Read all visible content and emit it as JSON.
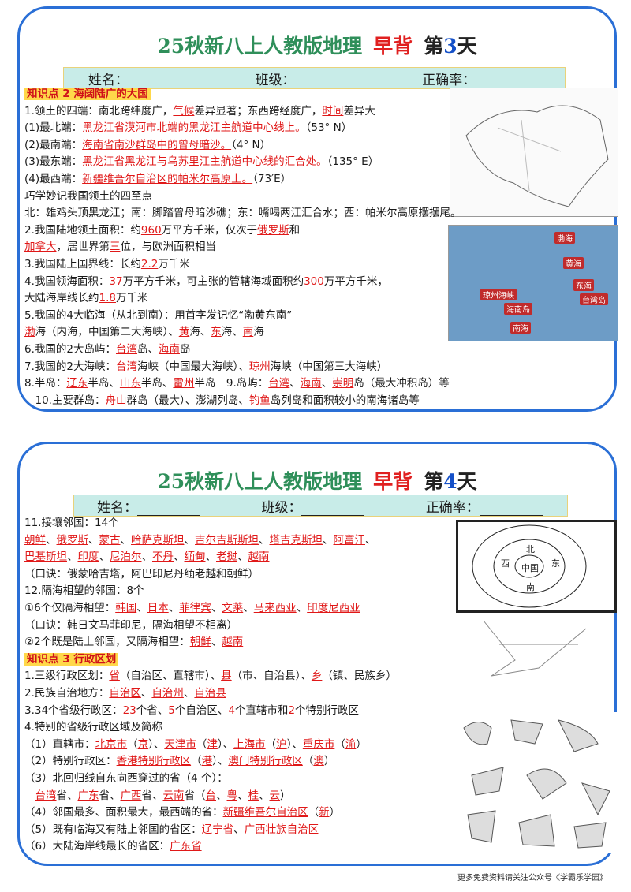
{
  "doc": {
    "cards": [
      {
        "title": [
          "25秋新八上人教版地理",
          "早背",
          "第",
          "3",
          "天"
        ],
        "fields": [
          "姓名：",
          "班级：",
          "正确率："
        ],
        "map_labels": [
          "渤海",
          "黄海",
          "东海",
          "台湾岛",
          "南海",
          "海南岛",
          "琼州海峡"
        ],
        "lines": [
          [
            {
              "head": "知识点 2 海阔陆广的大国"
            }
          ],
          [
            "1.领土的四端：南北跨纬度广，",
            {
              "hl": "气候"
            },
            "差异显著；东西跨经度广，",
            {
              "hl": "时间"
            },
            "差异大"
          ],
          [
            "(1)最北端：",
            {
              "hl": "黑龙江省漠河市北端的黑龙江主航道中心线上。"
            },
            "（53° N）"
          ],
          [
            "(2)最南端：",
            {
              "hl": "海南省南沙群岛中的曾母暗沙。"
            },
            "（4° N）"
          ],
          [
            "(3)最东端：",
            {
              "hl": "黑龙江省黑龙江与乌苏里江主航道中心线的汇合处。"
            },
            "（135° E）"
          ],
          [
            "(4)最西端：",
            {
              "hl": "新疆维吾尔自治区的帕米尔高原上。"
            },
            "（73′E）"
          ],
          [
            "巧学妙记我国领土的四至点"
          ],
          [
            "北：雄鸡头顶黑龙江；南：脚踏曾母暗沙礁；东：嘴喝两江汇合水；西：帕米尔高原摆摆尾。"
          ],
          [
            "2.我国陆地领土面积：约",
            {
              "hl": "960"
            },
            "万平方千米，仅次于",
            {
              "hl": "俄罗斯"
            },
            "和"
          ],
          [
            {
              "hl": "加拿大"
            },
            "，居世界第",
            {
              "hl": "三"
            },
            "位，与欧洲面积相当"
          ],
          [
            "3.我国陆上国界线：长约",
            {
              "hl": "2.2"
            },
            "万千米"
          ],
          [
            "4.我国领海面积：",
            {
              "hl": "37"
            },
            "万平方千米，可主张的管辖海域面积约",
            {
              "hl": "300"
            },
            "万平方千米，"
          ],
          [
            "大陆海岸线长约",
            {
              "hl": "1.8"
            },
            "万千米"
          ],
          [
            "5.我国的4大临海（从北到南）：用首字发记忆“渤黄东南”"
          ],
          [
            {
              "hl": "渤"
            },
            "海（内海，中国第二大海峡）、",
            {
              "hl": "黄"
            },
            "海、",
            {
              "hl": "东"
            },
            "海、",
            {
              "hl": "南"
            },
            "海"
          ],
          [
            "6.我国的2大岛屿：",
            {
              "hl": "台湾"
            },
            "岛、",
            {
              "hl": "海南"
            },
            "岛"
          ],
          [
            "7.我国的2大海峡：",
            {
              "hl": "台湾"
            },
            "海峡（中国最大海峡）、",
            {
              "hl": "琼州"
            },
            "海峡（中国第三大海峡）"
          ],
          [
            "8.半岛：",
            {
              "hl": "辽东"
            },
            "半岛、",
            {
              "hl": "山东"
            },
            "半岛、",
            {
              "hl": "雷州"
            },
            "半岛　9.岛屿：",
            {
              "hl": "台湾"
            },
            "、",
            {
              "hl": "海南"
            },
            "、",
            {
              "hl": "崇明"
            },
            "岛（最大冲积岛）等"
          ],
          [
            "　10.主要群岛：",
            {
              "hl": "舟山"
            },
            "群岛（最大）、澎湖列岛、",
            {
              "hl": "钓鱼"
            },
            "岛列岛和面积较小的南海诸岛等"
          ]
        ]
      },
      {
        "title": [
          "25秋新八上人教版地理",
          "早背",
          "第",
          "4",
          "天"
        ],
        "fields": [
          "姓名：",
          "班级：",
          "正确率："
        ],
        "diagram_labels": [
          "中国",
          "北",
          "东",
          "南",
          "西"
        ],
        "lines": [
          [
            "11.接壤邻国：14个"
          ],
          [
            {
              "hl": "朝鲜"
            },
            "、",
            {
              "hl": "俄罗斯"
            },
            "、",
            {
              "hl": "蒙古"
            },
            "、",
            {
              "hl": "哈萨克斯坦"
            },
            "、",
            {
              "hl": "吉尔吉斯斯坦"
            },
            "、",
            {
              "hl": "塔吉克斯坦"
            },
            "、",
            {
              "hl": "阿富汗"
            },
            "、"
          ],
          [
            {
              "hl": "巴基斯坦"
            },
            "、",
            {
              "hl": "印度"
            },
            "、",
            {
              "hl": "尼泊尔"
            },
            "、",
            {
              "hl": "不丹"
            },
            "、",
            {
              "hl": "缅甸"
            },
            "、",
            {
              "hl": "老挝"
            },
            "、",
            {
              "hl": "越南"
            }
          ],
          [
            "（口诀：俄蒙哈吉塔，阿巴印尼丹缅老越和朝鲜）"
          ],
          [
            "12.隔海相望的邻国：8个"
          ],
          [
            "①6个仅隔海相望：",
            {
              "hl": "韩国"
            },
            "、",
            {
              "hl": "日本"
            },
            "、",
            {
              "hl": "菲律宾"
            },
            "、",
            {
              "hl": "文莱"
            },
            "、",
            {
              "hl": "马来西亚"
            },
            "、",
            {
              "hl": "印度尼西亚"
            }
          ],
          [
            "（口诀：韩日文马菲印尼，隔海相望不相离）"
          ],
          [
            "②2个既是陆上邻国，又隔海相望：",
            {
              "hl": "朝鲜"
            },
            "、",
            {
              "hl": "越南"
            }
          ],
          [
            {
              "head": "知识点 3 行政区划"
            }
          ],
          [
            "1.三级行政区划：",
            {
              "hl": "省"
            },
            "（自治区、直辖市）、",
            {
              "hl": "县"
            },
            "（市、自治县）、",
            {
              "hl": "乡"
            },
            "（镇、民族乡）"
          ],
          [
            "2.民族自治地方：",
            {
              "hl": "自治区"
            },
            "、",
            {
              "hl": "自治州"
            },
            "、",
            {
              "hl": "自治县"
            }
          ],
          [
            "3.34个省级行政区：",
            {
              "hl": "23"
            },
            "个省、",
            {
              "hl": "5"
            },
            "个自治区、",
            {
              "hl": "4"
            },
            "个直辖市和",
            {
              "hl": "2"
            },
            "个特别行政区"
          ],
          [
            "4.特别的省级行政区域及简称"
          ],
          [
            "（1）直辖市：",
            {
              "hl": "北京市"
            },
            "（",
            {
              "hl": "京"
            },
            "）、",
            {
              "hl": "天津市"
            },
            "（",
            {
              "hl": "津"
            },
            "）、",
            {
              "hl": "上海市"
            },
            "（",
            {
              "hl": "沪"
            },
            "）、",
            {
              "hl": "重庆市"
            },
            "（",
            {
              "hl": "渝"
            },
            "）"
          ],
          [
            "（2）特别行政区：",
            {
              "hl": "香港特别行政区"
            },
            "（",
            {
              "hl": "港"
            },
            "）、",
            {
              "hl": "澳门特别行政区"
            },
            "（",
            {
              "hl": "澳"
            },
            "）"
          ],
          [
            "（3）北回归线自东向西穿过的省（4 个）："
          ],
          [
            "　",
            {
              "hl": "台湾"
            },
            "省、",
            {
              "hl": "广东"
            },
            "省、",
            {
              "hl": "广西"
            },
            "省、",
            {
              "hl": "云南"
            },
            "省（",
            {
              "hl": "台"
            },
            "、",
            {
              "hl": "粤"
            },
            "、",
            {
              "hl": "桂"
            },
            "、",
            {
              "hl": "云"
            },
            "）"
          ],
          [
            "（4）邻国最多、面积最大，最西端的省：",
            {
              "hl": "新疆维吾尔自治区"
            },
            "（",
            {
              "hl": "新"
            },
            "）"
          ],
          [
            "（5）既有临海又有陆上邻国的省区：",
            {
              "hl": "辽宁省"
            },
            "、",
            {
              "hl": "广西壮族自治区"
            }
          ],
          [
            "（6）大陆海岸线最长的省区：",
            {
              "hl": "广东省"
            }
          ]
        ]
      }
    ],
    "footer": "更多免费资料请关注公众号《学霸乐学园》"
  }
}
